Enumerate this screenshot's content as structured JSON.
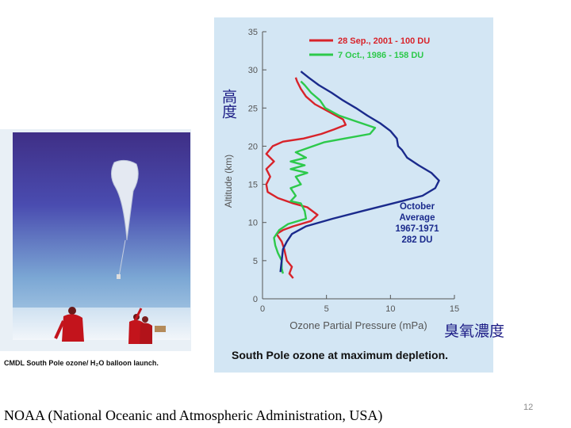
{
  "photo": {
    "caption": "CMDL South Pole ozone/ H₂O balloon launch."
  },
  "chart_footer": "South Pole ozone at maximum depletion.",
  "annotations": {
    "altitude_cn": "高度",
    "concentration_cn": "臭氧濃度"
  },
  "source": "NOAA (National Oceanic and Atmospheric Administration, USA)",
  "page_number": "12",
  "chart_data": {
    "type": "line",
    "xlabel": "Ozone Partial Pressure (mPa)",
    "ylabel": "Altitude (km)",
    "xlim": [
      0,
      15
    ],
    "ylim": [
      0,
      35
    ],
    "xticks": [
      0,
      5,
      10,
      15
    ],
    "yticks": [
      0,
      5,
      10,
      15,
      20,
      25,
      30,
      35
    ],
    "legend_position": "top-right",
    "series": [
      {
        "name": "28 Sep., 2001 - 100 DU",
        "color": "#d8232a",
        "points": [
          [
            2.4,
            2.7
          ],
          [
            2.1,
            3.3
          ],
          [
            2.3,
            4.2
          ],
          [
            1.9,
            5.0
          ],
          [
            1.7,
            6.5
          ],
          [
            1.5,
            7.5
          ],
          [
            1.1,
            8.5
          ],
          [
            1.6,
            9.0
          ],
          [
            2.4,
            9.5
          ],
          [
            3.8,
            10.2
          ],
          [
            4.3,
            11.0
          ],
          [
            3.5,
            12.0
          ],
          [
            2.4,
            12.5
          ],
          [
            1.2,
            13.2
          ],
          [
            0.4,
            14.0
          ],
          [
            0.3,
            15.0
          ],
          [
            0.6,
            16.0
          ],
          [
            0.3,
            17.0
          ],
          [
            0.9,
            18.0
          ],
          [
            0.3,
            19.0
          ],
          [
            0.8,
            20.0
          ],
          [
            1.6,
            20.6
          ],
          [
            3.2,
            21.0
          ],
          [
            4.6,
            21.6
          ],
          [
            5.6,
            22.2
          ],
          [
            6.5,
            22.8
          ],
          [
            6.3,
            23.5
          ],
          [
            5.2,
            24.5
          ],
          [
            4.1,
            25.5
          ],
          [
            3.4,
            26.5
          ],
          [
            3.0,
            27.5
          ],
          [
            2.7,
            28.5
          ],
          [
            2.6,
            29.0
          ]
        ]
      },
      {
        "name": "7 Oct., 1986 - 158 DU",
        "color": "#2dc94b",
        "points": [
          [
            1.6,
            3.3
          ],
          [
            1.5,
            4.0
          ],
          [
            1.5,
            5.0
          ],
          [
            1.2,
            6.0
          ],
          [
            1.0,
            7.0
          ],
          [
            0.9,
            8.0
          ],
          [
            1.3,
            9.0
          ],
          [
            2.0,
            9.8
          ],
          [
            3.4,
            10.5
          ],
          [
            3.3,
            11.5
          ],
          [
            3.0,
            12.5
          ],
          [
            2.2,
            12.8
          ],
          [
            2.6,
            13.5
          ],
          [
            2.2,
            14.5
          ],
          [
            3.0,
            15.0
          ],
          [
            2.6,
            16.0
          ],
          [
            3.5,
            16.5
          ],
          [
            2.2,
            17.0
          ],
          [
            3.3,
            17.5
          ],
          [
            2.2,
            18.0
          ],
          [
            3.4,
            18.5
          ],
          [
            2.6,
            19.2
          ],
          [
            3.6,
            19.8
          ],
          [
            4.8,
            20.5
          ],
          [
            6.4,
            21.0
          ],
          [
            8.4,
            21.6
          ],
          [
            8.8,
            22.4
          ],
          [
            7.4,
            23.2
          ],
          [
            6.0,
            24.0
          ],
          [
            4.9,
            25.0
          ],
          [
            4.5,
            26.0
          ],
          [
            3.8,
            27.0
          ],
          [
            3.3,
            28.0
          ],
          [
            3.0,
            28.5
          ]
        ]
      },
      {
        "name": "October Average 1967-1971 282 DU",
        "color": "#1a2a8c",
        "points": [
          [
            1.4,
            3.5
          ],
          [
            1.5,
            5.0
          ],
          [
            1.6,
            6.5
          ],
          [
            1.9,
            7.5
          ],
          [
            2.3,
            8.5
          ],
          [
            3.4,
            9.5
          ],
          [
            5.5,
            10.5
          ],
          [
            7.8,
            11.5
          ],
          [
            10.2,
            12.5
          ],
          [
            12.5,
            13.5
          ],
          [
            13.5,
            14.5
          ],
          [
            13.8,
            15.5
          ],
          [
            13.2,
            16.5
          ],
          [
            12.2,
            17.5
          ],
          [
            11.3,
            18.5
          ],
          [
            10.9,
            19.5
          ],
          [
            10.6,
            20.0
          ],
          [
            10.5,
            21.0
          ],
          [
            10.0,
            22.0
          ],
          [
            9.2,
            23.0
          ],
          [
            8.2,
            24.0
          ],
          [
            7.3,
            25.0
          ],
          [
            6.3,
            26.0
          ],
          [
            5.4,
            27.0
          ],
          [
            4.4,
            28.0
          ],
          [
            3.6,
            29.0
          ],
          [
            3.0,
            29.8
          ]
        ]
      }
    ],
    "annotations": [
      "October",
      "Average",
      "1967-1971",
      "282 DU"
    ]
  }
}
